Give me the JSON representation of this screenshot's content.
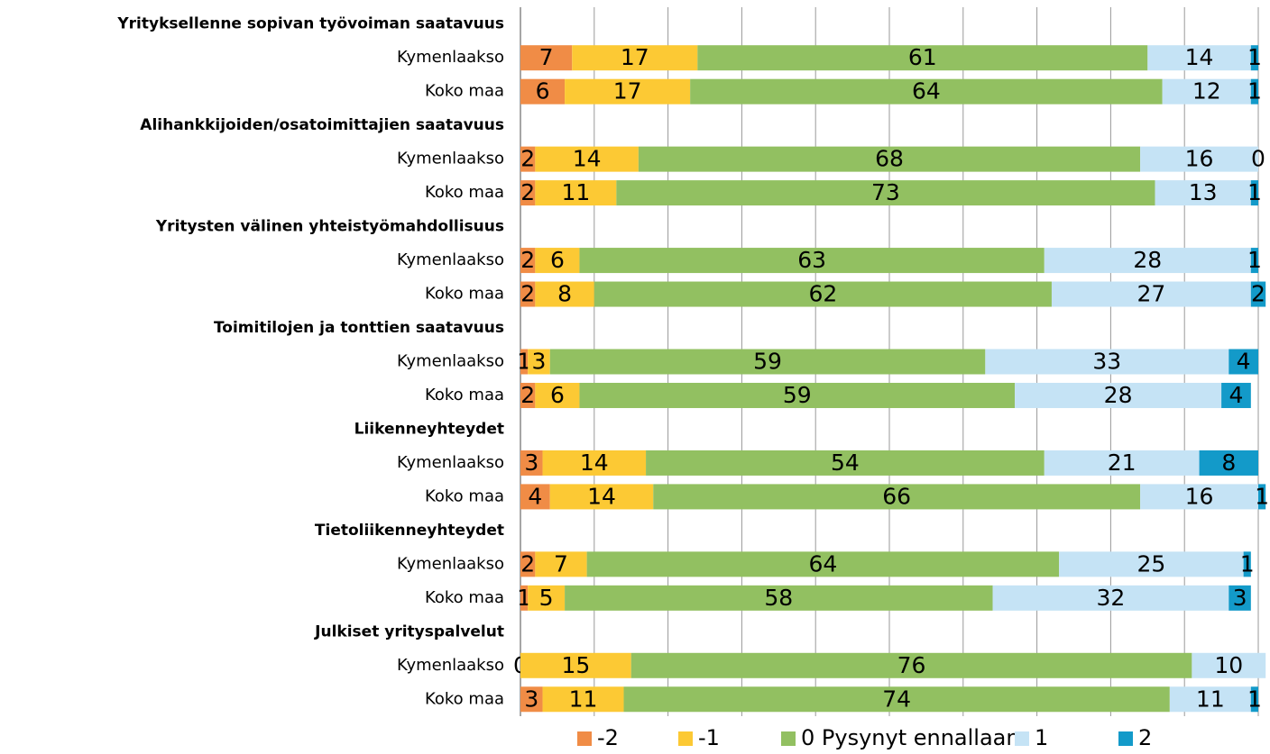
{
  "chart_data": {
    "type": "stacked_barh",
    "groups": [
      "Yrityksellenne sopivan työvoiman saatavuus",
      "Alihankkijoiden/osatoimittajien saatavuus",
      "Yritysten välinen yhteistyömahdollisuus",
      "Toimitilojen ja tonttien saatavuus",
      "Liikenneyhteydet",
      "Tietoliikenneyhteydet",
      "Julkiset yrityspalvelut"
    ],
    "categories": [
      "Kymenlaakso",
      "Koko maa",
      "Kymenlaakso",
      "Koko maa",
      "Kymenlaakso",
      "Koko maa",
      "Kymenlaakso",
      "Koko maa",
      "Kymenlaakso",
      "Koko maa",
      "Kymenlaakso",
      "Koko maa",
      "Kymenlaakso",
      "Koko maa"
    ],
    "series": [
      {
        "name": "-2",
        "color": "#f08c46",
        "values": [
          7,
          6,
          2,
          2,
          2,
          2,
          1,
          2,
          3,
          4,
          2,
          1,
          0,
          3
        ]
      },
      {
        "name": "-1",
        "color": "#fcc934",
        "values": [
          17,
          17,
          14,
          11,
          6,
          8,
          3,
          6,
          14,
          14,
          7,
          5,
          15,
          11
        ]
      },
      {
        "name": "0  Pysynyt ennallaan",
        "color": "#92c061",
        "values": [
          61,
          64,
          68,
          73,
          63,
          62,
          59,
          59,
          54,
          66,
          64,
          58,
          76,
          74
        ]
      },
      {
        "name": "1",
        "color": "#c5e3f5",
        "values": [
          14,
          12,
          16,
          13,
          28,
          27,
          33,
          28,
          21,
          16,
          25,
          32,
          10,
          11
        ]
      },
      {
        "name": "2",
        "color": "#139ac9",
        "values": [
          1,
          1,
          0,
          1,
          1,
          2,
          4,
          4,
          8,
          1,
          1,
          3,
          null,
          1
        ]
      }
    ],
    "xlim": [
      0,
      100
    ],
    "xticks": [
      0,
      10,
      20,
      30,
      40,
      50,
      60,
      70,
      80,
      90,
      100
    ],
    "grid": true,
    "legend": "bottom"
  }
}
